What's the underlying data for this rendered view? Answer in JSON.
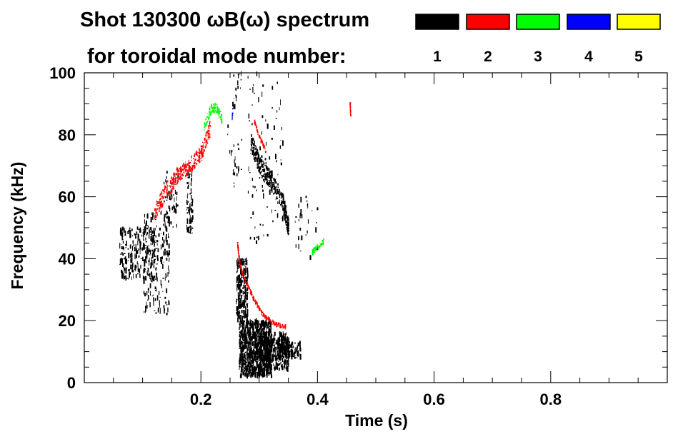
{
  "title_line1": "Shot 130300 ωB(ω) spectrum",
  "title_line2": "for toroidal mode number:",
  "legend": [
    {
      "label": "1",
      "color": "#000000"
    },
    {
      "label": "2",
      "color": "#ff0000"
    },
    {
      "label": "3",
      "color": "#00ff00"
    },
    {
      "label": "4",
      "color": "#0000ff"
    },
    {
      "label": "5",
      "color": "#ffff00"
    }
  ],
  "chart_data": {
    "type": "scatter",
    "title": "Shot 130300 ωB(ω) spectrum",
    "xlabel": "Time (s)",
    "ylabel": "Frequency (kHz)",
    "xlim": [
      0.0,
      1.0
    ],
    "ylim": [
      0,
      100
    ],
    "x_ticks": [
      0.2,
      0.4,
      0.6,
      0.8
    ],
    "x_tick_labels": [
      "0.2",
      "0.4",
      "0.6",
      "0.8"
    ],
    "y_ticks": [
      0,
      20,
      40,
      60,
      80,
      100
    ],
    "y_tick_labels": [
      "0",
      "20",
      "40",
      "60",
      "80",
      "100"
    ],
    "grid": false,
    "series": [
      {
        "name": "1",
        "color": "#000000",
        "regions": [
          {
            "t0": 0.06,
            "t1": 0.125,
            "f0": 33,
            "f1": 50,
            "density": 260
          },
          {
            "t0": 0.1,
            "t1": 0.145,
            "f0": 22,
            "f1": 55,
            "density": 160
          },
          {
            "t0": 0.135,
            "t1": 0.16,
            "f0": 50,
            "f1": 68,
            "density": 50
          },
          {
            "t0": 0.175,
            "t1": 0.185,
            "f0": 48,
            "f1": 68,
            "density": 70
          },
          {
            "t0": 0.265,
            "t1": 0.32,
            "f0": 2,
            "f1": 20,
            "density": 900
          },
          {
            "t0": 0.26,
            "t1": 0.28,
            "f0": 20,
            "f1": 40,
            "density": 220
          },
          {
            "t0": 0.3,
            "t1": 0.35,
            "f0": 4,
            "f1": 16,
            "density": 350
          },
          {
            "t0": 0.33,
            "t1": 0.37,
            "f0": 8,
            "f1": 13,
            "density": 120
          },
          {
            "t0": 0.28,
            "t1": 0.34,
            "f0": 45,
            "f1": 100,
            "density": 80
          },
          {
            "t0": 0.245,
            "t1": 0.27,
            "f0": 60,
            "f1": 100,
            "density": 40
          },
          {
            "t0": 0.36,
            "t1": 0.4,
            "f0": 40,
            "f1": 60,
            "density": 30
          }
        ],
        "tracks": [
          {
            "t": [
              0.285,
              0.3,
              0.32,
              0.34,
              0.35
            ],
            "f": [
              78,
              70,
              65,
              58,
              50
            ],
            "width": 6,
            "density": 500
          }
        ]
      },
      {
        "name": "2",
        "color": "#ff0000",
        "tracks": [
          {
            "t": [
              0.12,
              0.14,
              0.16,
              0.18,
              0.2,
              0.215
            ],
            "f": [
              55,
              62,
              67,
              70,
              74,
              82
            ],
            "width": 5,
            "density": 380
          },
          {
            "t": [
              0.262,
              0.266,
              0.275,
              0.29,
              0.305,
              0.325,
              0.345
            ],
            "f": [
              45,
              38,
              33,
              27,
              22,
              19,
              18
            ],
            "width": 1.2,
            "density": 220
          },
          {
            "t": [
              0.29,
              0.298,
              0.31
            ],
            "f": [
              85,
              80,
              75
            ],
            "width": 1.2,
            "density": 40
          },
          {
            "t": [
              0.455,
              0.456
            ],
            "f": [
              90,
              86
            ],
            "width": 1.0,
            "density": 15
          }
        ]
      },
      {
        "name": "3",
        "color": "#00ff00",
        "tracks": [
          {
            "t": [
              0.205,
              0.215,
              0.225,
              0.235
            ],
            "f": [
              82,
              88,
              89,
              85
            ],
            "width": 3,
            "density": 110
          },
          {
            "t": [
              0.39,
              0.4,
              0.412
            ],
            "f": [
              42,
              44,
              46
            ],
            "width": 1.6,
            "density": 50
          }
        ]
      },
      {
        "name": "4",
        "color": "#0000ff",
        "tracks": [
          {
            "t": [
              0.253,
              0.254
            ],
            "f": [
              85,
              89
            ],
            "width": 0.6,
            "density": 8
          }
        ]
      },
      {
        "name": "5",
        "color": "#ffff00",
        "tracks": []
      }
    ]
  }
}
